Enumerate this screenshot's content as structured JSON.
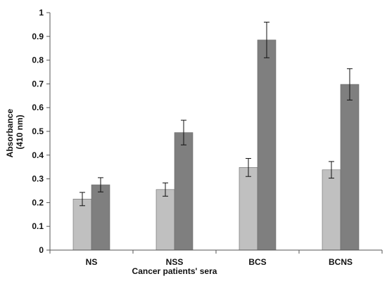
{
  "chart_data": {
    "type": "bar",
    "title": "",
    "xlabel": "Cancer patients' sera",
    "ylabel_lines": [
      "Absorbance",
      "(410 nm)"
    ],
    "categories": [
      "NS",
      "NSS",
      "BCS",
      "BCNS"
    ],
    "ylim": [
      0,
      1
    ],
    "yticks": [
      "0",
      "0.1",
      "0.2",
      "0.3",
      "0.4",
      "0.5",
      "0.6",
      "0.7",
      "0.8",
      "0.9",
      "1"
    ],
    "grid": false,
    "legend": "none",
    "series": [
      {
        "color": "#c0c0c0",
        "values": [
          0.215,
          0.255,
          0.348,
          0.338
        ],
        "errors": [
          0.028,
          0.028,
          0.038,
          0.035
        ]
      },
      {
        "color": "#7f7f7f",
        "values": [
          0.275,
          0.495,
          0.885,
          0.698
        ],
        "errors": [
          0.03,
          0.052,
          0.075,
          0.066
        ]
      }
    ]
  }
}
